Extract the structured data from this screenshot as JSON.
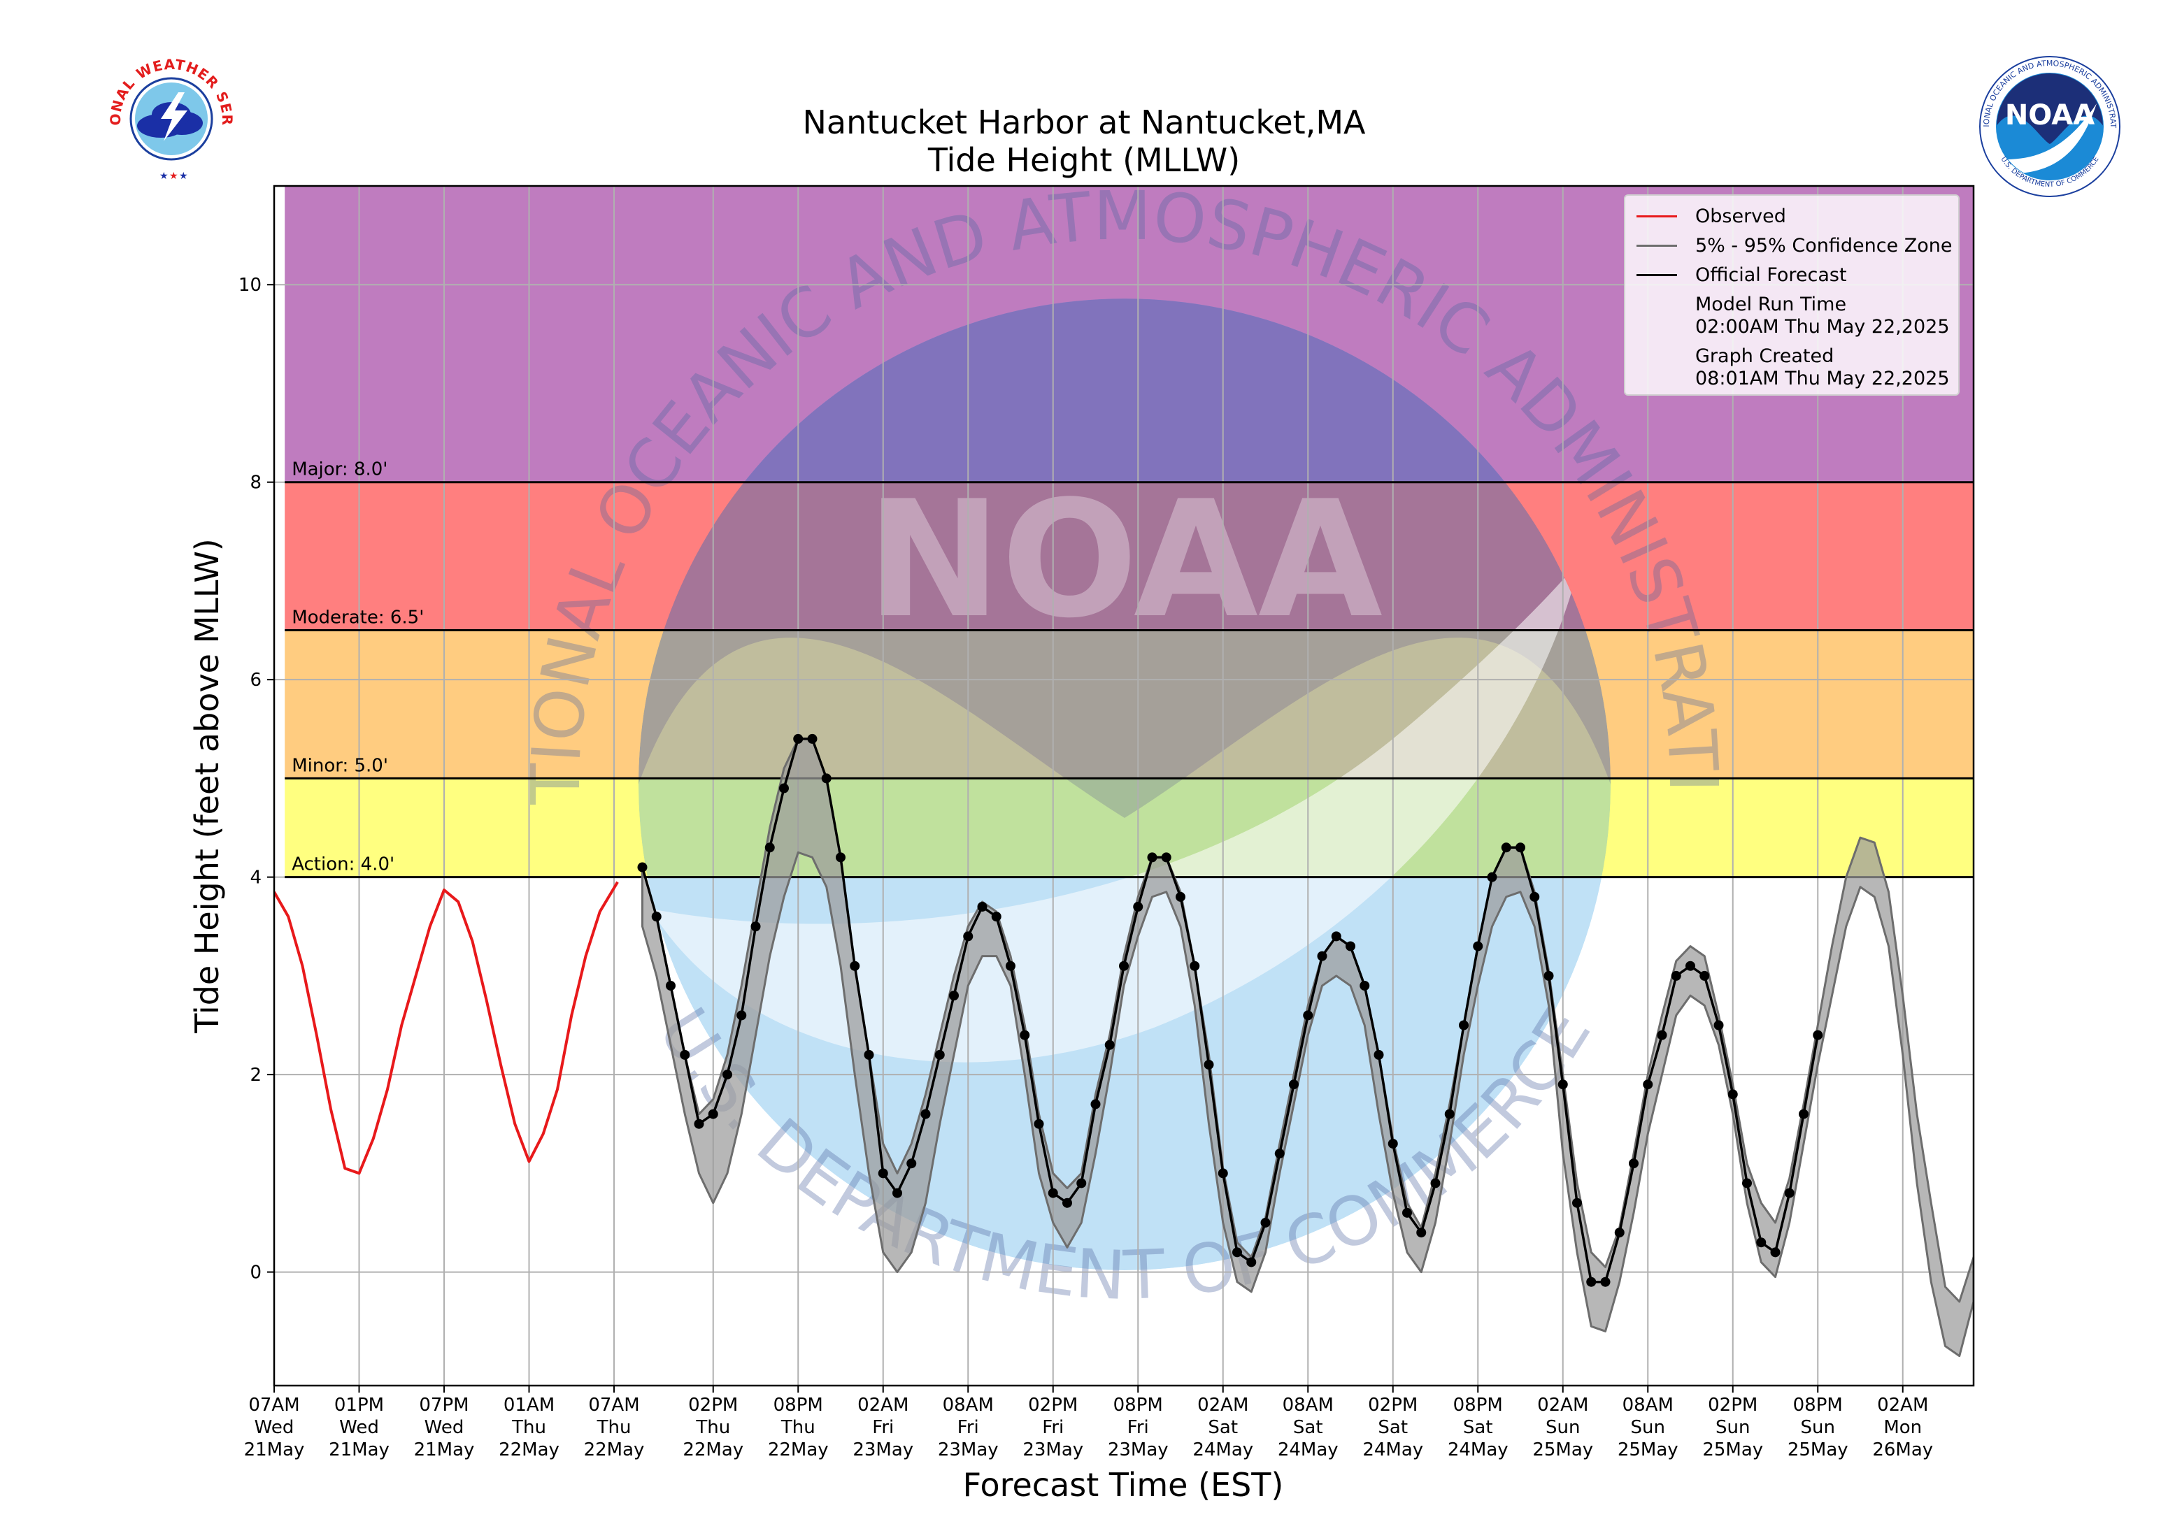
{
  "header": {
    "title_line1": "Nantucket Harbor at Nantucket,MA",
    "title_line2": "Tide Height (MLLW)"
  },
  "logos": {
    "nws_text": "NATIONAL WEATHER SERVICE",
    "noaa_text": "NOAA",
    "noaa_ring_text": "NATIONAL OCEANIC AND ATMOSPHERIC ADMINISTRATION",
    "noaa_ring_bottom": "U.S. DEPARTMENT OF COMMERCE"
  },
  "watermark": {
    "center_text": "NOAA",
    "ring_top": "NATIONAL OCEANIC AND ATMOSPHERIC ADMINISTRATION",
    "ring_bottom": "U.S. DEPARTMENT OF COMMERCE"
  },
  "legend": {
    "observed": "Observed",
    "confidence": "5% - 95% Confidence Zone",
    "forecast": "Official Forecast",
    "model_run_label": "Model Run Time",
    "model_run_value": "02:00AM Thu May 22,2025",
    "graph_created_label": "Graph Created",
    "graph_created_value": "08:01AM Thu May 22,2025"
  },
  "colors": {
    "major": "#bf7cbf",
    "moderate": "#ff7f7f",
    "minor": "#ffcc80",
    "action": "#ffff80",
    "observed": "#e8191b",
    "forecast": "#000000",
    "confidence_fill": "#9b9b9b",
    "confidence_edge": "#6d6d6d",
    "grid": "#b0b0b0"
  },
  "chart_data": {
    "type": "line",
    "title": "Nantucket Harbor at Nantucket,MA\nTide Height (MLLW)",
    "xlabel": "Forecast Time (EST)",
    "ylabel": "Tide Height (feet above MLLW)",
    "x_unit": "hours since 07AM Wed 21May (EST)",
    "xlim": [
      0,
      120
    ],
    "ylim": [
      -1.15,
      11.0
    ],
    "y_ticks": [
      0,
      2,
      4,
      6,
      8,
      10
    ],
    "x_ticks": [
      {
        "x": 0,
        "l1": "07AM",
        "l2": "Wed",
        "l3": "21May"
      },
      {
        "x": 6,
        "l1": "01PM",
        "l2": "Wed",
        "l3": "21May"
      },
      {
        "x": 12,
        "l1": "07PM",
        "l2": "Wed",
        "l3": "21May"
      },
      {
        "x": 18,
        "l1": "01AM",
        "l2": "Thu",
        "l3": "22May"
      },
      {
        "x": 24,
        "l1": "07AM",
        "l2": "Thu",
        "l3": "22May"
      },
      {
        "x": 31,
        "l1": "02PM",
        "l2": "Thu",
        "l3": "22May"
      },
      {
        "x": 37,
        "l1": "08PM",
        "l2": "Thu",
        "l3": "22May"
      },
      {
        "x": 43,
        "l1": "02AM",
        "l2": "Fri",
        "l3": "23May"
      },
      {
        "x": 49,
        "l1": "08AM",
        "l2": "Fri",
        "l3": "23May"
      },
      {
        "x": 55,
        "l1": "02PM",
        "l2": "Fri",
        "l3": "23May"
      },
      {
        "x": 61,
        "l1": "08PM",
        "l2": "Fri",
        "l3": "23May"
      },
      {
        "x": 67,
        "l1": "02AM",
        "l2": "Sat",
        "l3": "24May"
      },
      {
        "x": 73,
        "l1": "08AM",
        "l2": "Sat",
        "l3": "24May"
      },
      {
        "x": 79,
        "l1": "02PM",
        "l2": "Sat",
        "l3": "24May"
      },
      {
        "x": 85,
        "l1": "08PM",
        "l2": "Sat",
        "l3": "24May"
      },
      {
        "x": 91,
        "l1": "02AM",
        "l2": "Sun",
        "l3": "25May"
      },
      {
        "x": 97,
        "l1": "08AM",
        "l2": "Sun",
        "l3": "25May"
      },
      {
        "x": 103,
        "l1": "02PM",
        "l2": "Sun",
        "l3": "25May"
      },
      {
        "x": 109,
        "l1": "08PM",
        "l2": "Sun",
        "l3": "25May"
      },
      {
        "x": 115,
        "l1": "02AM",
        "l2": "Mon",
        "l3": "26May"
      }
    ],
    "grid": true,
    "legend_position": "top-right",
    "thresholds": [
      {
        "name": "Major",
        "label": "Major: 8.0'",
        "value": 8.0
      },
      {
        "name": "Moderate",
        "label": "Moderate: 6.5'",
        "value": 6.5
      },
      {
        "name": "Minor",
        "label": "Minor: 5.0'",
        "value": 5.0
      },
      {
        "name": "Action",
        "label": "Action: 4.0'",
        "value": 4.0
      }
    ],
    "series": [
      {
        "name": "Observed",
        "x": [
          0,
          1,
          2,
          3,
          4,
          5,
          6,
          7,
          8,
          9,
          10,
          11,
          12,
          13,
          14,
          15,
          16,
          17,
          18,
          19,
          20,
          21,
          22,
          23,
          24.25
        ],
        "y": [
          3.85,
          3.6,
          3.1,
          2.4,
          1.65,
          1.05,
          1.0,
          1.35,
          1.85,
          2.5,
          3.0,
          3.5,
          3.87,
          3.75,
          3.35,
          2.75,
          2.1,
          1.5,
          1.12,
          1.4,
          1.85,
          2.6,
          3.2,
          3.65,
          3.95
        ]
      },
      {
        "name": "Official Forecast",
        "x": [
          26,
          27,
          28,
          29,
          30,
          31,
          32,
          33,
          34,
          35,
          36,
          37,
          38,
          39,
          40,
          41,
          42,
          43,
          44,
          45,
          46,
          47,
          48,
          49,
          50,
          51,
          52,
          53,
          54,
          55,
          56,
          57,
          58,
          59,
          60,
          61,
          62,
          63,
          64,
          65,
          66,
          67,
          68,
          69,
          70,
          71,
          72,
          73,
          74,
          75,
          76,
          77,
          78,
          79,
          80,
          81,
          82,
          83,
          84,
          85,
          86,
          87,
          88,
          89,
          90,
          91,
          92,
          93,
          94,
          95,
          96,
          97,
          98,
          99,
          100,
          101,
          102,
          103,
          104,
          105,
          106,
          107,
          108,
          109
        ],
        "y": [
          4.1,
          3.6,
          2.9,
          2.2,
          1.5,
          1.6,
          2.0,
          2.6,
          3.5,
          4.3,
          4.9,
          5.4,
          5.4,
          5.0,
          4.2,
          3.1,
          2.2,
          1.0,
          0.8,
          1.1,
          1.6,
          2.2,
          2.8,
          3.4,
          3.7,
          3.6,
          3.1,
          2.4,
          1.5,
          0.8,
          0.7,
          0.9,
          1.7,
          2.3,
          3.1,
          3.7,
          4.2,
          4.2,
          3.8,
          3.1,
          2.1,
          1.0,
          0.2,
          0.1,
          0.5,
          1.2,
          1.9,
          2.6,
          3.2,
          3.4,
          3.3,
          2.9,
          2.2,
          1.3,
          0.6,
          0.4,
          0.9,
          1.6,
          2.5,
          3.3,
          4.0,
          4.3,
          4.3,
          3.8,
          3.0,
          1.9,
          0.7,
          -0.1,
          -0.1,
          0.4,
          1.1,
          1.9,
          2.4,
          3.0,
          3.1,
          3.0,
          2.5,
          1.8,
          0.9,
          0.3,
          0.2,
          0.8,
          1.6,
          2.4
        ]
      },
      {
        "name": "5% - 95% Confidence Zone",
        "x": [
          26,
          27,
          28,
          29,
          30,
          31,
          32,
          33,
          34,
          35,
          36,
          37,
          38,
          39,
          40,
          41,
          42,
          43,
          44,
          45,
          46,
          47,
          48,
          49,
          50,
          51,
          52,
          53,
          54,
          55,
          56,
          57,
          58,
          59,
          60,
          61,
          62,
          63,
          64,
          65,
          66,
          67,
          68,
          69,
          70,
          71,
          72,
          73,
          74,
          75,
          76,
          77,
          78,
          79,
          80,
          81,
          82,
          83,
          84,
          85,
          86,
          87,
          88,
          89,
          90,
          91,
          92,
          93,
          94,
          95,
          96,
          97,
          98,
          99,
          100,
          101,
          102,
          103,
          104,
          105,
          106,
          107,
          108,
          109,
          110,
          111,
          112,
          113,
          114,
          115,
          116,
          117,
          118,
          119,
          120
        ],
        "low": [
          3.5,
          3.0,
          2.3,
          1.6,
          1.0,
          0.7,
          1.0,
          1.6,
          2.4,
          3.2,
          3.8,
          4.25,
          4.2,
          3.9,
          3.1,
          2.0,
          1.0,
          0.2,
          0.0,
          0.2,
          0.7,
          1.5,
          2.2,
          2.9,
          3.2,
          3.2,
          2.9,
          2.0,
          1.0,
          0.5,
          0.25,
          0.5,
          1.2,
          2.0,
          2.9,
          3.4,
          3.8,
          3.85,
          3.5,
          2.7,
          1.5,
          0.5,
          -0.1,
          -0.2,
          0.2,
          1.0,
          1.7,
          2.4,
          2.9,
          3.0,
          2.9,
          2.5,
          1.6,
          0.8,
          0.2,
          0.0,
          0.5,
          1.3,
          2.2,
          2.9,
          3.5,
          3.8,
          3.85,
          3.5,
          2.7,
          1.2,
          0.2,
          -0.55,
          -0.6,
          -0.1,
          0.6,
          1.4,
          2.0,
          2.6,
          2.8,
          2.7,
          2.3,
          1.6,
          0.7,
          0.1,
          -0.05,
          0.5,
          1.3,
          2.1,
          2.8,
          3.5,
          3.9,
          3.8,
          3.3,
          2.2,
          0.9,
          -0.1,
          -0.75,
          -0.85,
          -0.3
        ],
        "high": [
          4.1,
          3.6,
          2.9,
          2.2,
          1.6,
          1.75,
          2.2,
          2.9,
          3.7,
          4.5,
          5.1,
          5.4,
          5.4,
          5.0,
          4.2,
          3.1,
          2.2,
          1.3,
          1.0,
          1.3,
          1.8,
          2.4,
          3.0,
          3.5,
          3.75,
          3.65,
          3.2,
          2.5,
          1.6,
          1.0,
          0.85,
          1.0,
          1.8,
          2.4,
          3.2,
          3.8,
          4.2,
          4.2,
          3.85,
          3.1,
          2.2,
          1.05,
          0.3,
          0.15,
          0.55,
          1.3,
          2.0,
          2.7,
          3.2,
          3.4,
          3.3,
          2.9,
          2.2,
          1.35,
          0.7,
          0.45,
          1.0,
          1.7,
          2.5,
          3.3,
          4.0,
          4.3,
          4.3,
          3.85,
          3.05,
          2.0,
          0.9,
          0.2,
          0.05,
          0.45,
          1.2,
          2.0,
          2.6,
          3.15,
          3.3,
          3.2,
          2.6,
          1.9,
          1.1,
          0.7,
          0.5,
          0.95,
          1.7,
          2.5,
          3.3,
          4.0,
          4.4,
          4.35,
          3.85,
          2.8,
          1.6,
          0.7,
          -0.15,
          -0.3,
          0.15
        ]
      }
    ]
  }
}
